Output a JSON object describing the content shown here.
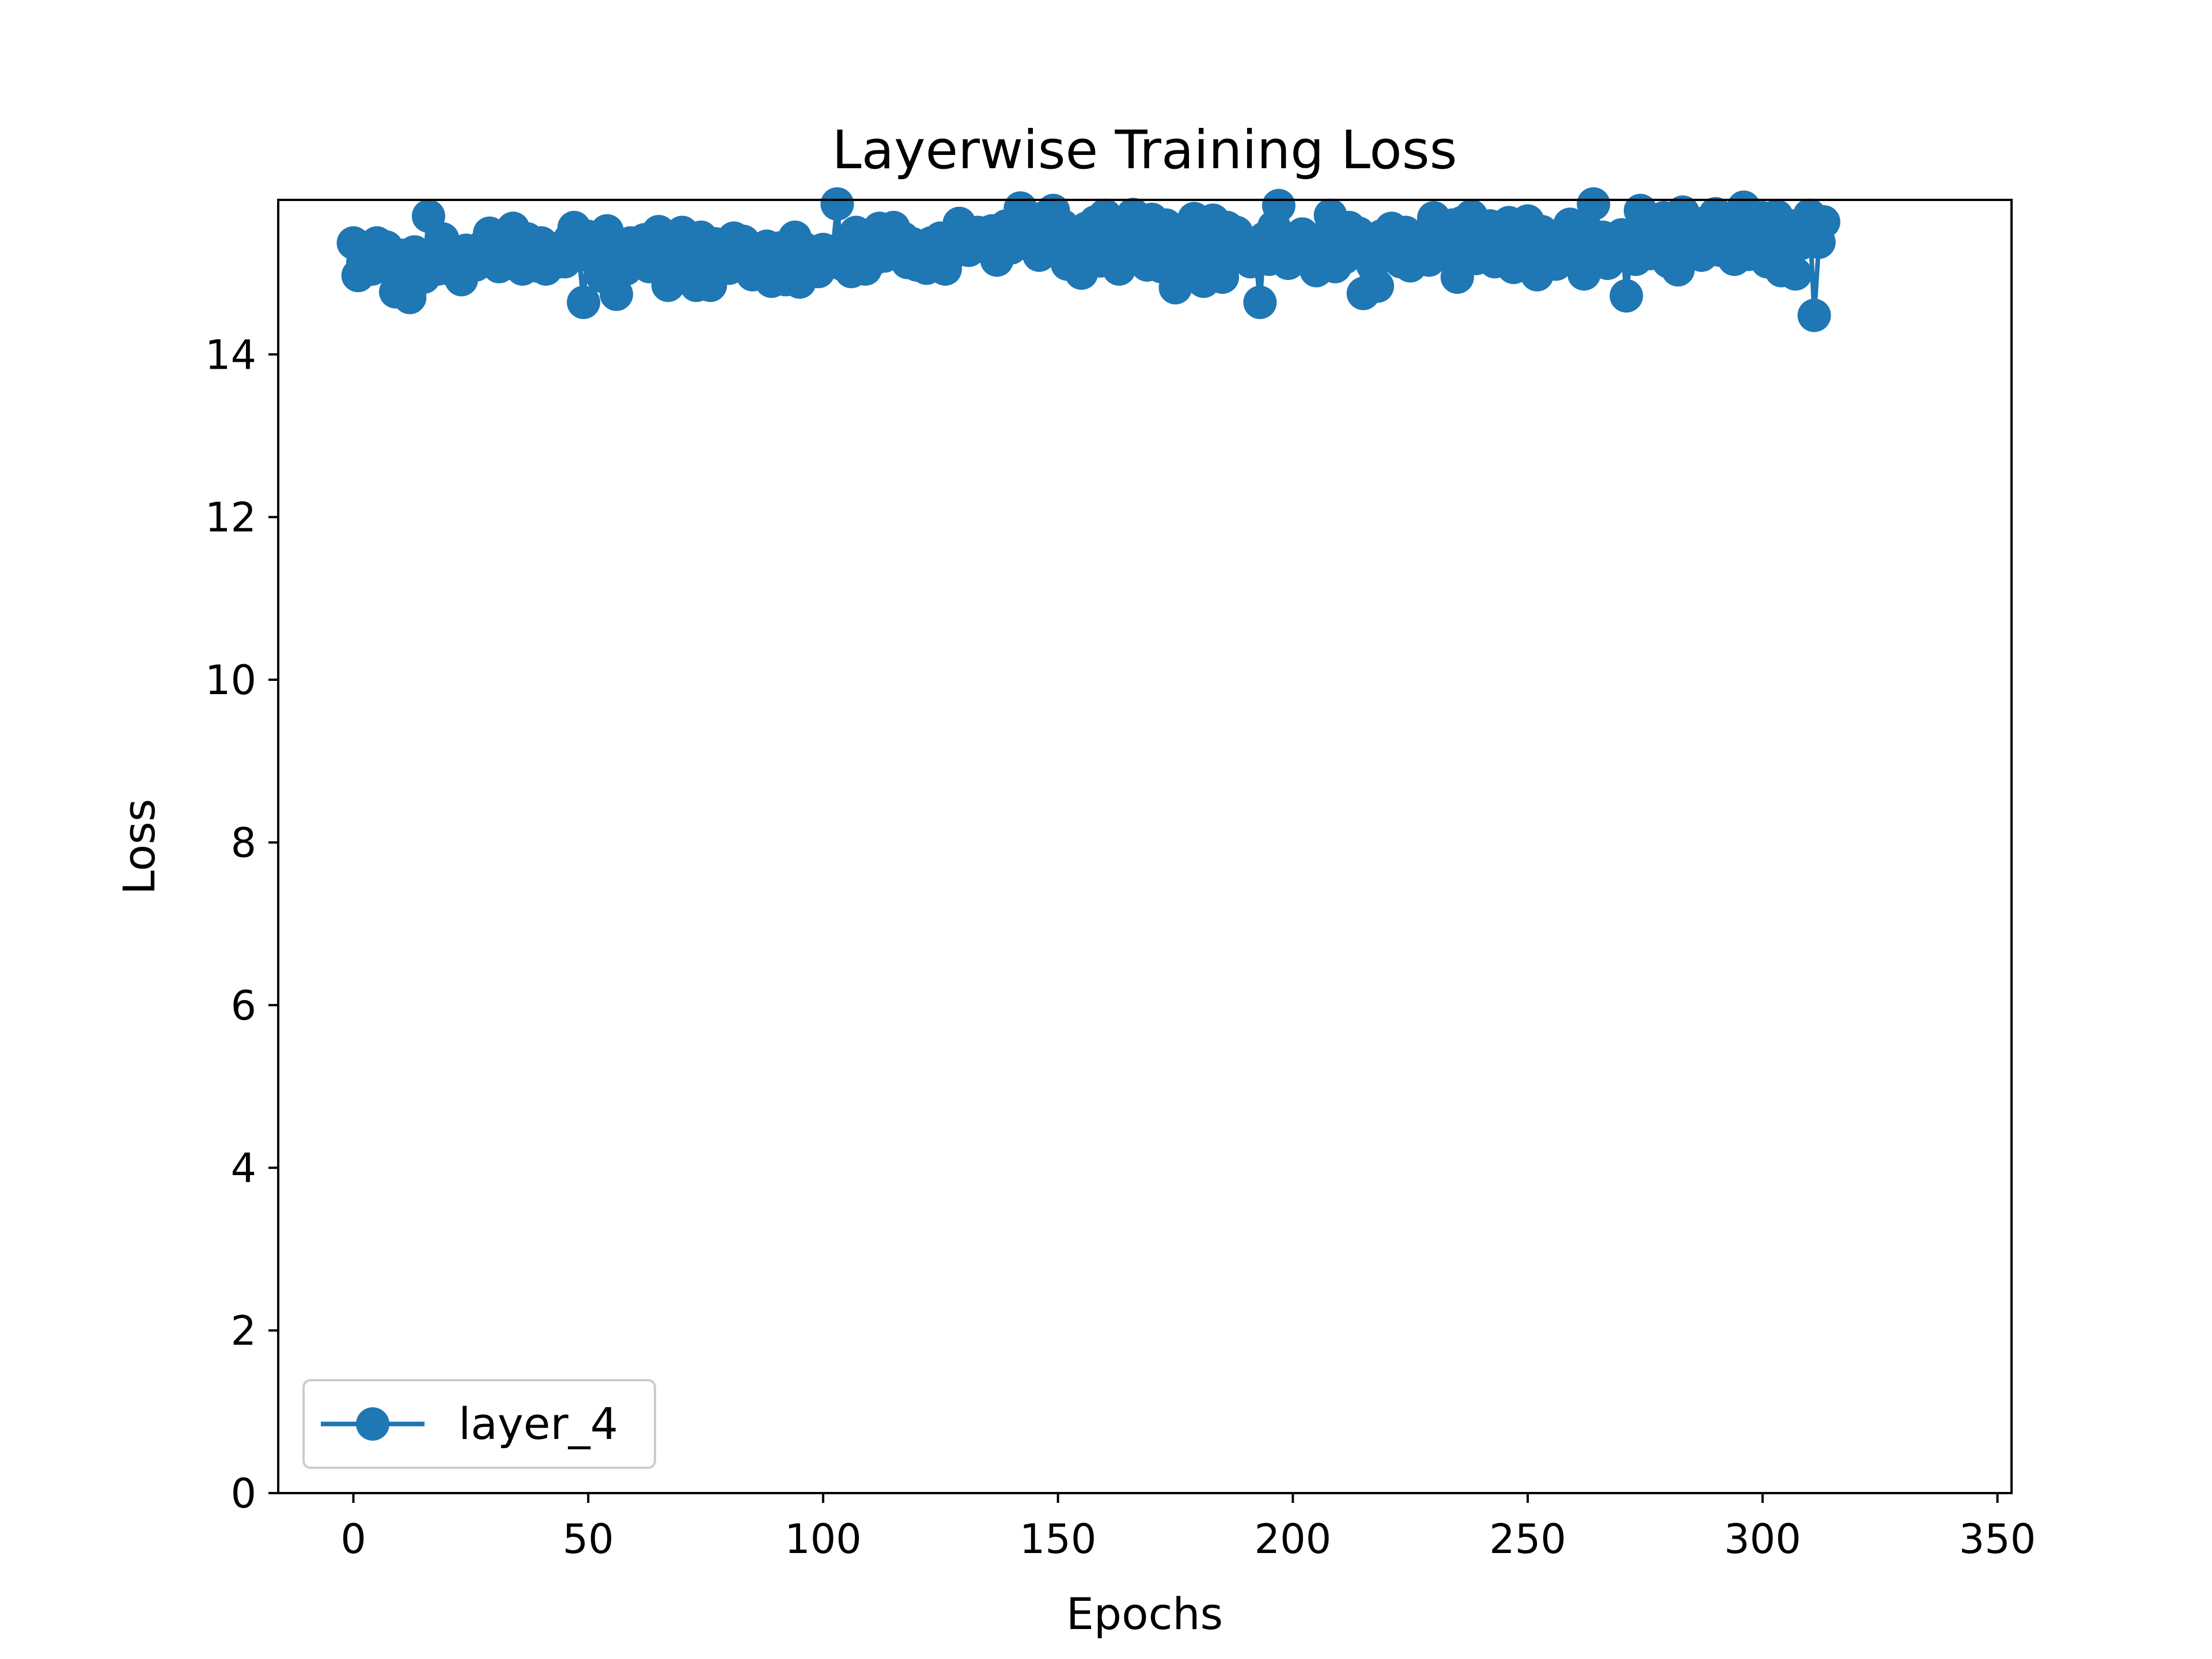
{
  "chart_data": {
    "type": "line",
    "title": "Layerwise Training Loss",
    "xlabel": "Epochs",
    "ylabel": "Loss",
    "xlim": [
      -16,
      353
    ],
    "ylim": [
      0,
      15.9
    ],
    "xticks": [
      0,
      50,
      100,
      150,
      200,
      250,
      300,
      350
    ],
    "yticks": [
      0,
      2,
      4,
      6,
      8,
      10,
      12,
      14
    ],
    "grid": false,
    "legend_position": "lower-left",
    "colors": {
      "series": "#1f77b4",
      "axes": "#000000",
      "background": "#ffffff"
    },
    "series": [
      {
        "name": "layer_4",
        "marker": "circle",
        "y": [
          15.37,
          14.97,
          15.13,
          15.27,
          15.05,
          15.37,
          15.18,
          15.32,
          15.05,
          14.77,
          15.22,
          14.83,
          14.7,
          15.26,
          15.0,
          14.95,
          15.7,
          15.18,
          15.05,
          15.42,
          15.12,
          15.05,
          15.0,
          14.92,
          15.28,
          15.17,
          15.1,
          15.24,
          15.35,
          15.49,
          15.2,
          15.08,
          15.46,
          15.16,
          15.55,
          15.3,
          15.05,
          15.42,
          15.18,
          15.09,
          15.37,
          15.05,
          15.28,
          15.13,
          15.22,
          15.14,
          15.41,
          15.56,
          15.22,
          14.64,
          15.45,
          15.38,
          15.21,
          14.96,
          15.52,
          15.27,
          14.74,
          15.2,
          15.05,
          15.37,
          15.16,
          15.3,
          15.41,
          15.08,
          15.22,
          15.51,
          15.33,
          14.85,
          15.45,
          15.2,
          15.5,
          15.05,
          15.37,
          14.85,
          15.44,
          15.17,
          14.85,
          15.36,
          15.1,
          15.29,
          15.06,
          15.43,
          15.18,
          15.39,
          15.12,
          14.98,
          15.28,
          15.16,
          15.33,
          14.9,
          15.22,
          15.31,
          14.92,
          15.17,
          15.44,
          14.89,
          15.3,
          15.05,
          15.21,
          15.02,
          15.29,
          15.13,
          15.25,
          15.85,
          15.11,
          15.38,
          15.02,
          15.5,
          15.24,
          15.05,
          15.39,
          15.18,
          15.55,
          15.21,
          15.34,
          15.56,
          15.28,
          15.43,
          15.13,
          15.36,
          15.1,
          15.29,
          15.06,
          15.37,
          15.11,
          15.43,
          15.05,
          15.22,
          15.34,
          15.61,
          15.47,
          15.28,
          15.4,
          15.5,
          15.33,
          15.46,
          15.52,
          15.16,
          15.44,
          15.58,
          15.31,
          15.64,
          15.8,
          15.49,
          15.35,
          15.62,
          15.22,
          15.68,
          15.4,
          15.77,
          15.29,
          15.58,
          15.11,
          15.46,
          15.25,
          15.0,
          15.55,
          15.33,
          15.63,
          15.15,
          15.71,
          15.38,
          15.22,
          15.05,
          15.48,
          15.29,
          15.72,
          15.17,
          15.53,
          15.1,
          15.66,
          15.25,
          15.08,
          15.59,
          15.35,
          14.82,
          15.27,
          15.48,
          15.13,
          15.67,
          15.21,
          14.9,
          15.36,
          15.65,
          15.07,
          14.95,
          15.56,
          15.4,
          15.5,
          15.29,
          15.38,
          15.14,
          15.26,
          14.64,
          15.43,
          15.17,
          15.57,
          15.83,
          15.21,
          15.12,
          15.38,
          15.25,
          15.48,
          15.36,
          15.17,
          15.03,
          15.29,
          15.45,
          15.71,
          15.08,
          15.34,
          15.19,
          15.56,
          15.26,
          15.49,
          14.75,
          15.37,
          15.1,
          14.84,
          15.46,
          15.23,
          15.55,
          15.36,
          15.14,
          15.5,
          15.09,
          15.41,
          15.24,
          15.37,
          15.16,
          15.68,
          15.33,
          15.45,
          15.22,
          15.59,
          14.95,
          15.62,
          15.25,
          15.7,
          15.18,
          15.43,
          15.31,
          15.58,
          15.14,
          15.39,
          15.26,
          15.62,
          15.07,
          15.48,
          15.2,
          15.64,
          15.33,
          14.98,
          15.51,
          15.22,
          15.36,
          15.11,
          15.42,
          15.28,
          15.6,
          15.2,
          15.35,
          14.99,
          15.5,
          15.85,
          15.27,
          15.44,
          15.12,
          15.33,
          15.21,
          15.47,
          14.72,
          15.3,
          15.17,
          15.77,
          15.42,
          15.24,
          15.55,
          15.33,
          15.68,
          15.14,
          15.48,
          15.04,
          15.75,
          15.26,
          15.38,
          15.61,
          15.22,
          15.5,
          15.36,
          15.73,
          15.28,
          15.47,
          15.64,
          15.17,
          15.4,
          15.81,
          15.23,
          15.55,
          15.34,
          15.68,
          15.14,
          15.46,
          15.7,
          15.03,
          15.27,
          15.58,
          14.99,
          15.36,
          15.62,
          15.71,
          14.48,
          15.38,
          15.63
        ]
      }
    ]
  }
}
